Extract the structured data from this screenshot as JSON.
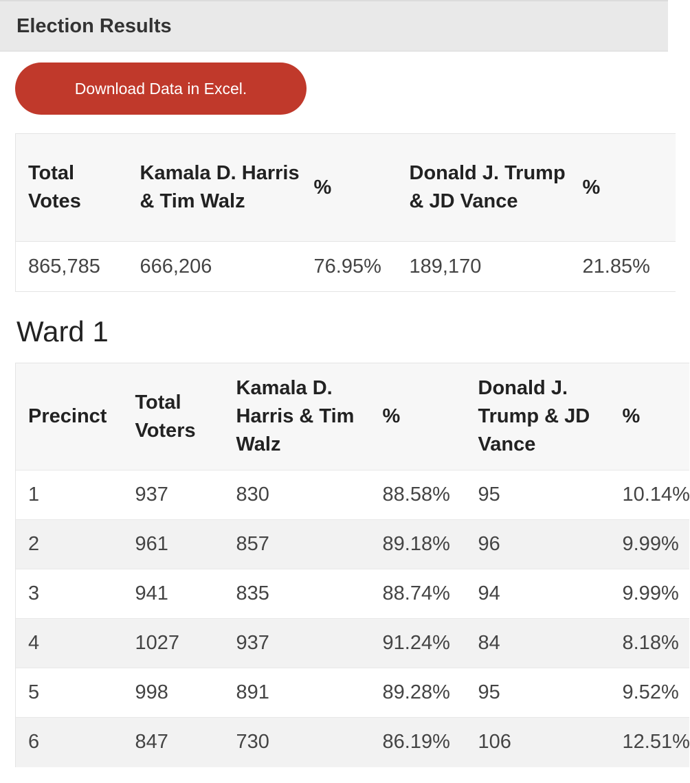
{
  "header": {
    "title": "Election Results"
  },
  "download_button": {
    "label": "Download Data in Excel."
  },
  "summary": {
    "headers": [
      "Total Votes",
      "Kamala D. Harris & Tim Walz",
      "%",
      "Donald J. Trump & JD Vance",
      "%"
    ],
    "row": [
      "865,785",
      "666,206",
      "76.95%",
      "189,170",
      "21.85%"
    ]
  },
  "ward": {
    "title": "Ward 1",
    "headers": [
      "Precinct",
      "Total Voters",
      "Kamala D. Harris & Tim Walz",
      "%",
      "Donald J. Trump & JD Vance",
      "%"
    ],
    "rows": [
      [
        "1",
        "937",
        "830",
        "88.58%",
        "95",
        "10.14%"
      ],
      [
        "2",
        "961",
        "857",
        "89.18%",
        "96",
        "9.99%"
      ],
      [
        "3",
        "941",
        "835",
        "88.74%",
        "94",
        "9.99%"
      ],
      [
        "4",
        "1027",
        "937",
        "91.24%",
        "84",
        "8.18%"
      ],
      [
        "5",
        "998",
        "891",
        "89.28%",
        "95",
        "9.52%"
      ],
      [
        "6",
        "847",
        "730",
        "86.19%",
        "106",
        "12.51%"
      ]
    ]
  }
}
